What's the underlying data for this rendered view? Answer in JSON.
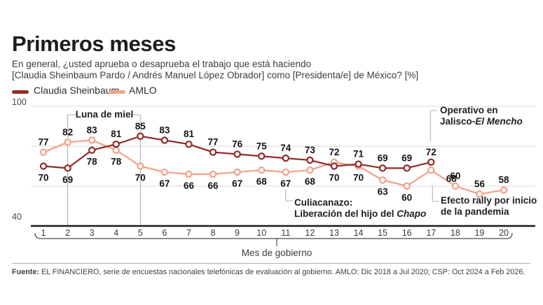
{
  "header": {
    "title": "Primeros meses",
    "subtitle_line1": "En general, ¿usted aprueba o desaprueba el trabajo que está haciendo",
    "subtitle_line2": "[Claudia Sheinbaum Pardo / Andrés Manuel López Obrador] como [Presidenta/e] de México? [%]"
  },
  "legend": [
    {
      "label": "Claudia Sheinbaum",
      "color": "#8f2b28"
    },
    {
      "label": "AMLO",
      "color": "#f2a18a"
    }
  ],
  "chart_data": {
    "type": "line",
    "x": [
      1,
      2,
      3,
      4,
      5,
      6,
      7,
      8,
      9,
      10,
      11,
      12,
      13,
      14,
      15,
      16,
      17,
      18,
      19,
      20
    ],
    "xlabel": "Mes de gobierno",
    "ylim": [
      40,
      100
    ],
    "gridlines": [
      100,
      80,
      60
    ],
    "axis_value": 40,
    "ytick_labels": [
      "100",
      "40"
    ],
    "legend_position": "top-left",
    "series": [
      {
        "name": "Claudia Sheinbaum",
        "color": "#8f2b28",
        "values": [
          70,
          69,
          78,
          81,
          85,
          83,
          81,
          77,
          76,
          75,
          74,
          73,
          70,
          71,
          69,
          69,
          72
        ]
      },
      {
        "name": "AMLO",
        "color": "#f2a18a",
        "values": [
          77,
          82,
          83,
          78,
          70,
          67,
          66,
          66,
          67,
          68,
          67,
          68,
          72,
          70,
          63,
          60,
          68,
          60,
          56,
          58
        ]
      }
    ]
  },
  "annotations": {
    "luna": "Luna de miel",
    "operativo_line1": "Operativo en",
    "operativo_line2_plain": "Jalisco-",
    "operativo_line2_italic": "El Mencho",
    "culiacanazo_line1": "Culiacanazo:",
    "culiacanazo_line2_plain": "Liberación del hijo del ",
    "culiacanazo_line2_italic": "Chapo",
    "rally_line1": "Efecto rally por inicio",
    "rally_line2": "de la pandemia"
  },
  "footer": {
    "source_label": "Fuente:",
    "source_text": " EL FINANCIERO, serie de encuestas nacionales telefónicas de evaluación al gobierno. AMLO: Dic 2018 a Jul 2020; CSP: Oct 2024 a Feb 2026."
  }
}
